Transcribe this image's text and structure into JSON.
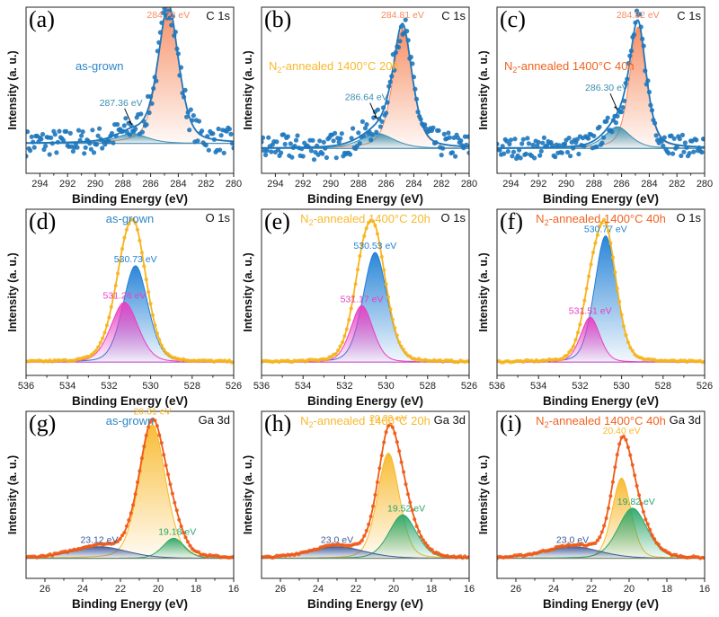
{
  "figure": {
    "description": "3x3 grid of XPS spectra: C 1s, O 1s, Ga 3d for as-grown and N2-annealed samples",
    "colors": {
      "as_grown": "#2f86c8",
      "annealed_20h": "#f8b92c",
      "annealed_40h": "#f0631f",
      "c_main": "#f68a5e",
      "c_minor": "#3b8fb0",
      "o_lattice": "#1f7fd6",
      "o_vacancy": "#e83fc3",
      "o_envelope": "#f6b41b",
      "ga_main": "#f8b92c",
      "ga_minor": "#2aa66a",
      "ga_low": "#3d5a99",
      "ga_envelope": "#ee5a17",
      "c_data": "#1e77bd"
    }
  },
  "chart_data": [
    {
      "panel": "(a)",
      "type": "scatter",
      "core_level": "C 1s",
      "sample": "as-grown",
      "sample_color": "#2f86c8",
      "xlabel": "Binding Energy (eV)",
      "ylabel": "Intensity (a. u.)",
      "xlim": [
        295,
        280
      ],
      "xticks": [
        294,
        292,
        290,
        288,
        286,
        284,
        282,
        280
      ],
      "grid": false,
      "peaks": [
        {
          "center": 284.72,
          "label": "284.72 eV",
          "height": 0.83,
          "width": 0.8,
          "color": "#f68a5e"
        },
        {
          "center": 287.36,
          "label": "287.36 eV",
          "height": 0.06,
          "width": 1.2,
          "color": "#3b8fb0",
          "arrow": true
        }
      ],
      "baseline": 0.18,
      "noise": 0.05,
      "style": "C"
    },
    {
      "panel": "(b)",
      "type": "scatter",
      "core_level": "C 1s",
      "sample": "N2-annealed 1400°C 20h",
      "sample_color": "#f8b92c",
      "xlabel": "Binding Energy (eV)",
      "ylabel": "Intensity (a. u.)",
      "xlim": [
        295,
        280
      ],
      "xticks": [
        294,
        292,
        290,
        288,
        286,
        284,
        282,
        280
      ],
      "grid": false,
      "peaks": [
        {
          "center": 284.81,
          "label": "284.81 eV",
          "height": 0.72,
          "width": 0.75,
          "color": "#f68a5e"
        },
        {
          "center": 286.64,
          "label": "286.64 eV",
          "height": 0.09,
          "width": 1.3,
          "color": "#3b8fb0",
          "arrow": true
        }
      ],
      "baseline": 0.15,
      "noise": 0.05,
      "style": "C"
    },
    {
      "panel": "(c)",
      "type": "scatter",
      "core_level": "C 1s",
      "sample": "N2-annealed 1400°C 40h",
      "sample_color": "#f0631f",
      "xlabel": "Binding Energy (eV)",
      "ylabel": "Intensity (a. u.)",
      "xlim": [
        295,
        280
      ],
      "xticks": [
        294,
        292,
        290,
        288,
        286,
        284,
        282,
        280
      ],
      "grid": false,
      "peaks": [
        {
          "center": 284.82,
          "label": "284.82 eV",
          "height": 0.73,
          "width": 0.65,
          "color": "#f68a5e"
        },
        {
          "center": 286.3,
          "label": "286.30 eV",
          "height": 0.13,
          "width": 1.0,
          "color": "#3b8fb0",
          "arrow": true
        }
      ],
      "baseline": 0.15,
      "noise": 0.04,
      "style": "C"
    },
    {
      "panel": "(d)",
      "type": "line",
      "core_level": "O 1s",
      "sample": "as-grown",
      "sample_color": "#2f86c8",
      "xlabel": "Binding Energy (eV)",
      "ylabel": "Intensity (a. u.)",
      "xlim": [
        536,
        526
      ],
      "xticks": [
        536,
        534,
        532,
        530,
        528,
        526
      ],
      "grid": false,
      "peaks": [
        {
          "center": 530.73,
          "label": "530.73 eV",
          "height": 0.58,
          "width": 0.62,
          "color": "#1f7fd6"
        },
        {
          "center": 531.26,
          "label": "531.26 eV",
          "height": 0.36,
          "width": 0.68,
          "color": "#e83fc3"
        }
      ],
      "baseline": 0.08,
      "style": "O"
    },
    {
      "panel": "(e)",
      "type": "line",
      "core_level": "O 1s",
      "sample": "N2-annealed 1400°C 20h",
      "sample_color": "#f8b92c",
      "xlabel": "Binding Energy (eV)",
      "ylabel": "Intensity (a. u.)",
      "xlim": [
        536,
        526
      ],
      "xticks": [
        536,
        534,
        532,
        530,
        528,
        526
      ],
      "grid": false,
      "peaks": [
        {
          "center": 530.53,
          "label": "530.53 eV",
          "height": 0.66,
          "width": 0.6,
          "color": "#1f7fd6"
        },
        {
          "center": 531.17,
          "label": "531.17 eV",
          "height": 0.34,
          "width": 0.55,
          "color": "#e83fc3"
        }
      ],
      "baseline": 0.08,
      "style": "O"
    },
    {
      "panel": "(f)",
      "type": "line",
      "core_level": "O 1s",
      "sample": "N2-annealed 1400°C 40h",
      "sample_color": "#f0631f",
      "xlabel": "Binding Energy (eV)",
      "ylabel": "Intensity (a. u.)",
      "xlim": [
        536,
        526
      ],
      "xticks": [
        536,
        534,
        532,
        530,
        528,
        526
      ],
      "grid": false,
      "peaks": [
        {
          "center": 530.77,
          "label": "530.77 eV",
          "height": 0.76,
          "width": 0.55,
          "color": "#1f7fd6"
        },
        {
          "center": 531.51,
          "label": "531.51 eV",
          "height": 0.27,
          "width": 0.48,
          "color": "#e83fc3"
        }
      ],
      "baseline": 0.08,
      "style": "O"
    },
    {
      "panel": "(g)",
      "type": "line",
      "core_level": "Ga 3d",
      "sample": "as-grown",
      "sample_color": "#2f86c8",
      "xlabel": "Binding Energy (eV)",
      "ylabel": "Intensity (a. u.)",
      "xlim": [
        27,
        16
      ],
      "xticks": [
        26,
        24,
        22,
        20,
        18,
        16
      ],
      "grid": false,
      "peaks": [
        {
          "center": 20.31,
          "label": "20.31 eV",
          "height": 0.8,
          "width": 0.72,
          "color": "#f8b92c"
        },
        {
          "center": 19.18,
          "label": "19.18 eV",
          "height": 0.12,
          "width": 0.6,
          "color": "#2aa66a"
        },
        {
          "center": 23.12,
          "label": "23.12 eV",
          "height": 0.07,
          "width": 1.5,
          "color": "#3d5a99"
        }
      ],
      "baseline": 0.12,
      "style": "Ga"
    },
    {
      "panel": "(h)",
      "type": "line",
      "core_level": "Ga 3d",
      "sample": "N2-annealed 1400°C 20h",
      "sample_color": "#f8b92c",
      "xlabel": "Binding Energy (eV)",
      "ylabel": "Intensity (a. u.)",
      "xlim": [
        27,
        16
      ],
      "xticks": [
        26,
        24,
        22,
        20,
        18,
        16
      ],
      "grid": false,
      "peaks": [
        {
          "center": 20.28,
          "label": "20.28 eV",
          "height": 0.63,
          "width": 0.6,
          "color": "#f8b92c"
        },
        {
          "center": 19.52,
          "label": "19.52 eV",
          "height": 0.26,
          "width": 0.75,
          "color": "#2aa66a"
        },
        {
          "center": 23.0,
          "label": "23.0 eV",
          "height": 0.07,
          "width": 1.5,
          "color": "#3d5a99"
        }
      ],
      "baseline": 0.12,
      "style": "Ga"
    },
    {
      "panel": "(i)",
      "type": "line",
      "core_level": "Ga 3d",
      "sample": "N2-annealed 1400°C 40h",
      "sample_color": "#f0631f",
      "xlabel": "Binding Energy (eV)",
      "ylabel": "Intensity (a. u.)",
      "xlim": [
        27,
        16
      ],
      "xticks": [
        26,
        24,
        22,
        20,
        18,
        16
      ],
      "grid": false,
      "peaks": [
        {
          "center": 20.4,
          "label": "20.40 eV",
          "height": 0.48,
          "width": 0.52,
          "color": "#f8b92c"
        },
        {
          "center": 19.82,
          "label": "19.82 eV",
          "height": 0.3,
          "width": 0.8,
          "color": "#2aa66a"
        },
        {
          "center": 23.0,
          "label": "23.0 eV",
          "height": 0.07,
          "width": 1.5,
          "color": "#3d5a99"
        }
      ],
      "baseline": 0.12,
      "style": "Ga"
    }
  ]
}
